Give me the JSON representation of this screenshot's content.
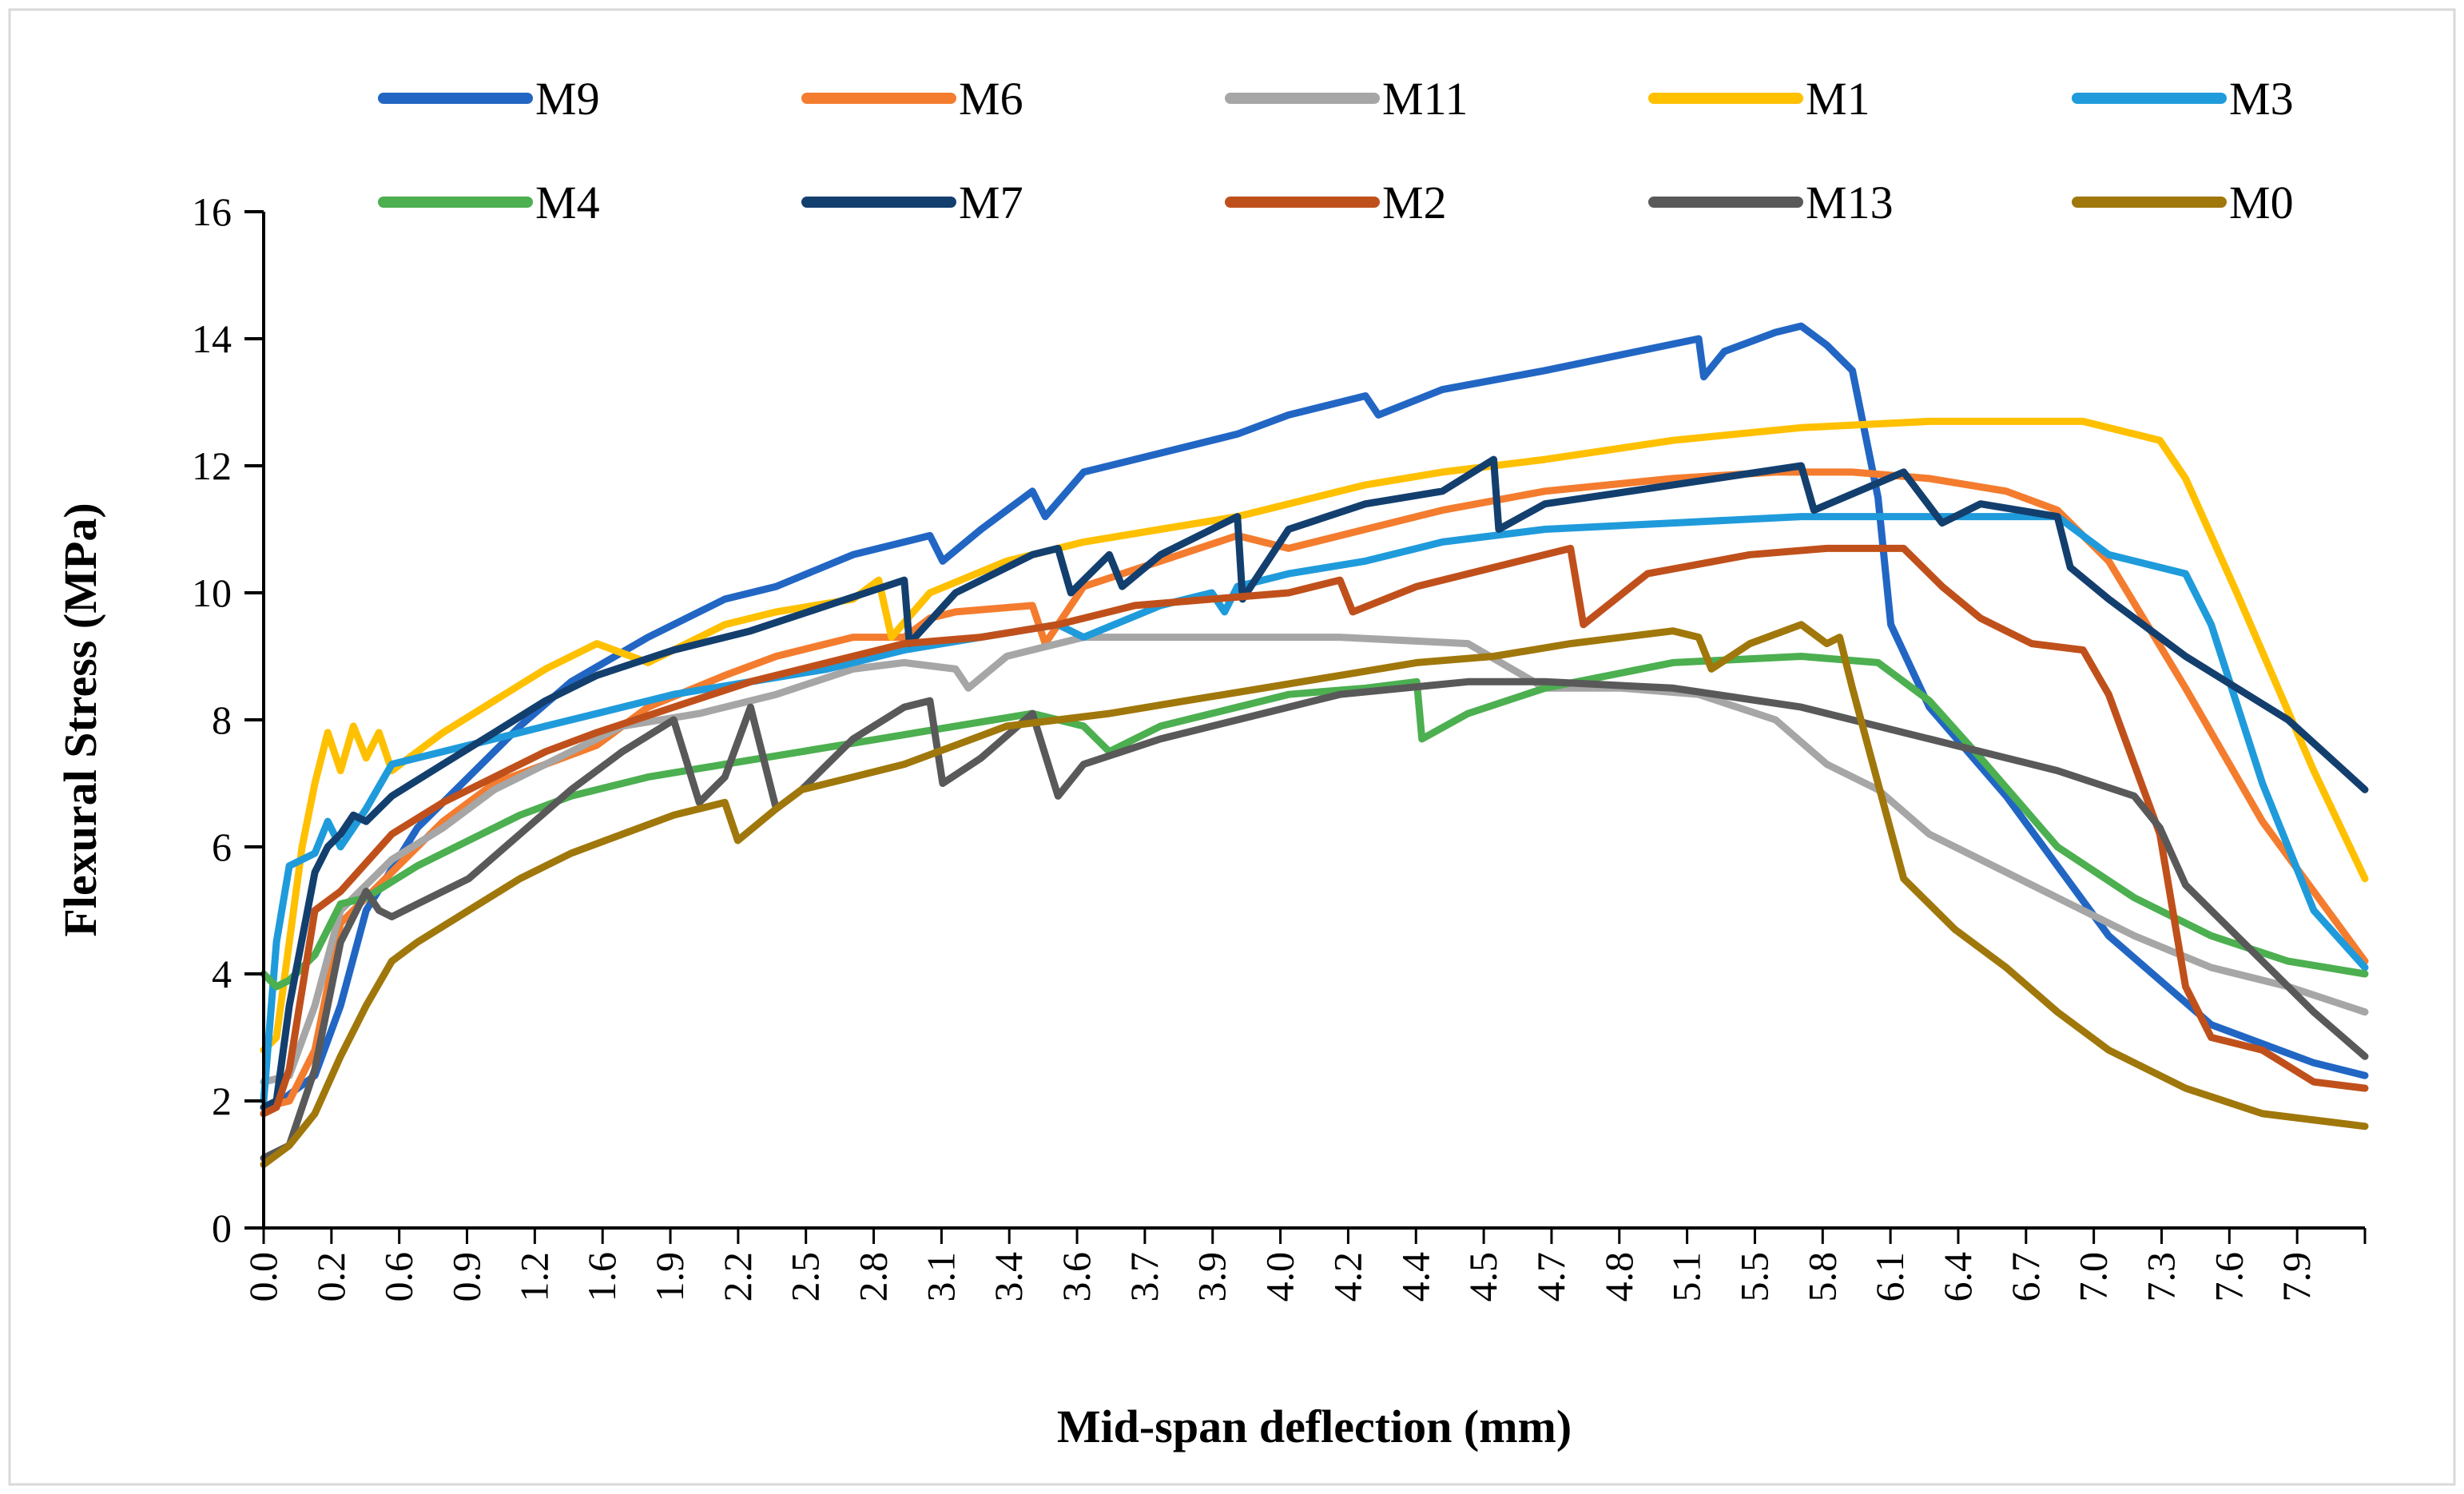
{
  "chart_data": {
    "type": "line",
    "title": "",
    "xlabel": "Mid-span deflection (mm)",
    "ylabel": "Flexural Stress (MPa)",
    "xlim": [
      0,
      8.2
    ],
    "ylim": [
      0,
      16
    ],
    "y_ticks": [
      "0",
      "2",
      "4",
      "6",
      "8",
      "10",
      "12",
      "14",
      "16"
    ],
    "x_ticks": [
      "0.0",
      "0.2",
      "0.6",
      "0.9",
      "1.2",
      "1.6",
      "1.9",
      "2.2",
      "2.5",
      "2.8",
      "3.1",
      "3.4",
      "3.6",
      "3.7",
      "3.9",
      "4.0",
      "4.2",
      "4.4",
      "4.5",
      "4.7",
      "4.8",
      "5.1",
      "5.5",
      "5.8",
      "6.1",
      "6.4",
      "6.7",
      "7.0",
      "7.3",
      "7.6",
      "7.9"
    ],
    "legend_position": "top",
    "series": [
      {
        "name": "M9",
        "color": "#2266C4",
        "x": [
          0,
          0.1,
          0.2,
          0.3,
          0.4,
          0.6,
          0.8,
          1.0,
          1.2,
          1.5,
          1.8,
          2.0,
          2.3,
          2.6,
          2.65,
          2.8,
          3.0,
          3.05,
          3.2,
          3.5,
          3.8,
          4.0,
          4.3,
          4.35,
          4.6,
          5.0,
          5.6,
          5.62,
          5.7,
          5.9,
          6.0,
          6.1,
          6.2,
          6.3,
          6.35,
          6.5,
          6.8,
          7.2,
          7.6,
          8.0,
          8.2
        ],
        "y": [
          1.8,
          2.1,
          2.4,
          3.5,
          5.0,
          6.3,
          7.1,
          7.9,
          8.6,
          9.3,
          9.9,
          10.1,
          10.6,
          10.9,
          10.5,
          11.0,
          11.6,
          11.2,
          11.9,
          12.2,
          12.5,
          12.8,
          13.1,
          12.8,
          13.2,
          13.5,
          14.0,
          13.4,
          13.8,
          14.1,
          14.2,
          13.9,
          13.5,
          11.5,
          9.5,
          8.2,
          6.8,
          4.6,
          3.2,
          2.6,
          2.4
        ]
      },
      {
        "name": "M6",
        "color": "#F47C2E",
        "x": [
          0,
          0.1,
          0.2,
          0.3,
          0.5,
          0.7,
          0.9,
          1.1,
          1.3,
          1.5,
          1.8,
          2.0,
          2.3,
          2.5,
          2.6,
          2.7,
          3.0,
          3.05,
          3.2,
          3.5,
          3.8,
          4.0,
          4.3,
          4.6,
          5.0,
          5.5,
          5.9,
          6.2,
          6.5,
          6.8,
          7.0,
          7.2,
          7.5,
          7.8,
          8.2
        ],
        "y": [
          1.9,
          2.0,
          2.8,
          4.8,
          5.6,
          6.4,
          7.0,
          7.3,
          7.6,
          8.2,
          8.7,
          9.0,
          9.3,
          9.3,
          9.6,
          9.7,
          9.8,
          9.2,
          10.1,
          10.5,
          10.9,
          10.7,
          11.0,
          11.3,
          11.6,
          11.8,
          11.9,
          11.9,
          11.8,
          11.6,
          11.3,
          10.5,
          8.5,
          6.4,
          4.2
        ]
      },
      {
        "name": "M11",
        "color": "#A6A6A6",
        "x": [
          0,
          0.1,
          0.2,
          0.3,
          0.5,
          0.7,
          0.9,
          1.1,
          1.4,
          1.7,
          2.0,
          2.3,
          2.5,
          2.7,
          2.75,
          2.9,
          3.2,
          3.5,
          3.8,
          4.2,
          4.7,
          5.0,
          5.3,
          5.6,
          5.9,
          6.1,
          6.3,
          6.5,
          6.8,
          7.0,
          7.3,
          7.6,
          7.9,
          8.2
        ],
        "y": [
          2.3,
          2.4,
          3.5,
          5.0,
          5.8,
          6.3,
          6.9,
          7.3,
          7.9,
          8.1,
          8.4,
          8.8,
          8.9,
          8.8,
          8.5,
          9.0,
          9.3,
          9.3,
          9.3,
          9.3,
          9.2,
          8.5,
          8.5,
          8.4,
          8.0,
          7.3,
          6.9,
          6.2,
          5.6,
          5.2,
          4.6,
          4.1,
          3.8,
          3.4
        ]
      },
      {
        "name": "M1",
        "color": "#FFC000",
        "x": [
          0,
          0.05,
          0.1,
          0.15,
          0.2,
          0.25,
          0.3,
          0.35,
          0.4,
          0.45,
          0.5,
          0.7,
          0.9,
          1.1,
          1.3,
          1.5,
          1.8,
          2.0,
          2.3,
          2.4,
          2.45,
          2.6,
          2.9,
          3.2,
          3.5,
          3.8,
          4.0,
          4.3,
          4.6,
          5.0,
          5.5,
          6.0,
          6.5,
          7.0,
          7.1,
          7.3,
          7.4,
          7.5,
          7.7,
          8.0,
          8.2
        ],
        "y": [
          2.8,
          3.0,
          4.5,
          6.0,
          7.0,
          7.8,
          7.2,
          7.9,
          7.4,
          7.8,
          7.2,
          7.8,
          8.3,
          8.8,
          9.2,
          8.9,
          9.5,
          9.7,
          9.9,
          10.2,
          9.3,
          10.0,
          10.5,
          10.8,
          11.0,
          11.2,
          11.4,
          11.7,
          11.9,
          12.1,
          12.4,
          12.6,
          12.7,
          12.7,
          12.7,
          12.5,
          12.4,
          11.8,
          10.0,
          7.2,
          5.5
        ]
      },
      {
        "name": "M3",
        "color": "#1F9BDB",
        "x": [
          0,
          0.05,
          0.1,
          0.2,
          0.25,
          0.3,
          0.35,
          0.4,
          0.5,
          0.7,
          0.9,
          1.1,
          1.3,
          1.6,
          1.9,
          2.2,
          2.5,
          2.8,
          3.1,
          3.2,
          3.5,
          3.6,
          3.7,
          3.75,
          3.8,
          4.0,
          4.3,
          4.6,
          5.0,
          5.5,
          6.0,
          6.5,
          7.0,
          7.2,
          7.5,
          7.6,
          7.8,
          8.0,
          8.2
        ],
        "y": [
          2.0,
          4.5,
          5.7,
          5.9,
          6.4,
          6.0,
          6.3,
          6.6,
          7.3,
          7.5,
          7.7,
          7.9,
          8.1,
          8.4,
          8.6,
          8.8,
          9.1,
          9.3,
          9.5,
          9.3,
          9.8,
          9.9,
          10.0,
          9.7,
          10.1,
          10.3,
          10.5,
          10.8,
          11.0,
          11.1,
          11.2,
          11.2,
          11.2,
          10.6,
          10.3,
          9.5,
          7.0,
          5.0,
          4.1
        ]
      },
      {
        "name": "M4",
        "color": "#4CAF50",
        "x": [
          0,
          0.05,
          0.1,
          0.2,
          0.3,
          0.4,
          0.6,
          0.8,
          1.0,
          1.2,
          1.5,
          1.8,
          2.1,
          2.4,
          2.7,
          3.0,
          3.2,
          3.3,
          3.5,
          3.8,
          4.0,
          4.3,
          4.5,
          4.52,
          4.7,
          5.0,
          5.5,
          6.0,
          6.3,
          6.5,
          6.7,
          7.0,
          7.3,
          7.6,
          7.9,
          8.2
        ],
        "y": [
          4.0,
          3.8,
          3.9,
          4.3,
          5.1,
          5.2,
          5.7,
          6.1,
          6.5,
          6.8,
          7.1,
          7.3,
          7.5,
          7.7,
          7.9,
          8.1,
          7.9,
          7.5,
          7.9,
          8.2,
          8.4,
          8.5,
          8.6,
          7.7,
          8.1,
          8.5,
          8.9,
          9.0,
          8.9,
          8.3,
          7.4,
          6.0,
          5.2,
          4.6,
          4.2,
          4.0
        ]
      },
      {
        "name": "M7",
        "color": "#133F6E",
        "x": [
          0,
          0.05,
          0.1,
          0.2,
          0.25,
          0.3,
          0.35,
          0.4,
          0.5,
          0.7,
          0.9,
          1.1,
          1.3,
          1.6,
          1.9,
          2.2,
          2.5,
          2.52,
          2.7,
          3.0,
          3.1,
          3.15,
          3.3,
          3.35,
          3.5,
          3.8,
          3.82,
          4.0,
          4.3,
          4.6,
          4.8,
          4.82,
          5.0,
          5.5,
          6.0,
          6.05,
          6.4,
          6.55,
          6.7,
          7.0,
          7.05,
          7.2,
          7.5,
          7.9,
          8.2
        ],
        "y": [
          1.9,
          2.0,
          3.5,
          5.6,
          6.0,
          6.2,
          6.5,
          6.4,
          6.8,
          7.3,
          7.8,
          8.3,
          8.7,
          9.1,
          9.4,
          9.8,
          10.2,
          9.2,
          10.0,
          10.6,
          10.7,
          10.0,
          10.6,
          10.1,
          10.6,
          11.2,
          9.9,
          11.0,
          11.4,
          11.6,
          12.1,
          11.0,
          11.4,
          11.7,
          12.0,
          11.3,
          11.9,
          11.1,
          11.4,
          11.2,
          10.4,
          9.9,
          9.0,
          8.0,
          6.9
        ]
      },
      {
        "name": "M2",
        "color": "#C0501B",
        "x": [
          0,
          0.05,
          0.1,
          0.2,
          0.3,
          0.5,
          0.7,
          0.9,
          1.1,
          1.3,
          1.6,
          1.9,
          2.2,
          2.5,
          2.8,
          3.1,
          3.4,
          3.7,
          4.0,
          4.2,
          4.25,
          4.5,
          4.8,
          5.0,
          5.1,
          5.15,
          5.4,
          5.8,
          6.1,
          6.4,
          6.55,
          6.7,
          6.9,
          7.1,
          7.2,
          7.3,
          7.4,
          7.5,
          7.6,
          7.8,
          8.0,
          8.2
        ],
        "y": [
          1.8,
          1.9,
          2.5,
          5.0,
          5.3,
          6.2,
          6.7,
          7.1,
          7.5,
          7.8,
          8.2,
          8.6,
          8.9,
          9.2,
          9.3,
          9.5,
          9.8,
          9.9,
          10.0,
          10.2,
          9.7,
          10.1,
          10.4,
          10.6,
          10.7,
          9.5,
          10.3,
          10.6,
          10.7,
          10.7,
          10.1,
          9.6,
          9.2,
          9.1,
          8.4,
          7.3,
          6.2,
          3.8,
          3.0,
          2.8,
          2.3,
          2.2
        ]
      },
      {
        "name": "M13",
        "color": "#595959",
        "x": [
          0,
          0.1,
          0.2,
          0.3,
          0.4,
          0.45,
          0.5,
          0.6,
          0.8,
          1.0,
          1.2,
          1.4,
          1.6,
          1.7,
          1.8,
          1.9,
          2.0,
          2.1,
          2.2,
          2.3,
          2.5,
          2.6,
          2.65,
          2.8,
          3.0,
          3.1,
          3.2,
          3.5,
          3.8,
          4.2,
          4.7,
          5.0,
          5.5,
          6.0,
          6.5,
          7.0,
          7.3,
          7.4,
          7.5,
          7.7,
          8.0,
          8.2
        ],
        "y": [
          1.1,
          1.3,
          2.5,
          4.5,
          5.3,
          5.0,
          4.9,
          5.1,
          5.5,
          6.2,
          6.9,
          7.5,
          8.0,
          6.7,
          7.1,
          8.2,
          6.6,
          6.9,
          7.3,
          7.7,
          8.2,
          8.3,
          7.0,
          7.4,
          8.1,
          6.8,
          7.3,
          7.7,
          8.0,
          8.4,
          8.6,
          8.6,
          8.5,
          8.2,
          7.7,
          7.2,
          6.8,
          6.3,
          5.4,
          4.6,
          3.4,
          2.7
        ]
      },
      {
        "name": "M0",
        "color": "#A0770B",
        "x": [
          0,
          0.1,
          0.2,
          0.3,
          0.4,
          0.5,
          0.6,
          0.8,
          1.0,
          1.2,
          1.4,
          1.6,
          1.8,
          1.85,
          2.0,
          2.1,
          2.3,
          2.5,
          2.7,
          2.9,
          3.1,
          3.3,
          3.6,
          3.9,
          4.2,
          4.5,
          4.8,
          5.1,
          5.5,
          5.6,
          5.65,
          5.8,
          6.0,
          6.1,
          6.15,
          6.2,
          6.3,
          6.4,
          6.6,
          6.8,
          7.0,
          7.2,
          7.5,
          7.8,
          8.2
        ],
        "y": [
          1.0,
          1.3,
          1.8,
          2.7,
          3.5,
          4.2,
          4.5,
          5.0,
          5.5,
          5.9,
          6.2,
          6.5,
          6.7,
          6.1,
          6.6,
          6.9,
          7.1,
          7.3,
          7.6,
          7.9,
          8.0,
          8.1,
          8.3,
          8.5,
          8.7,
          8.9,
          9.0,
          9.2,
          9.4,
          9.3,
          8.8,
          9.2,
          9.5,
          9.2,
          9.3,
          8.5,
          7.0,
          5.5,
          4.7,
          4.1,
          3.4,
          2.8,
          2.2,
          1.8,
          1.6
        ]
      }
    ]
  }
}
